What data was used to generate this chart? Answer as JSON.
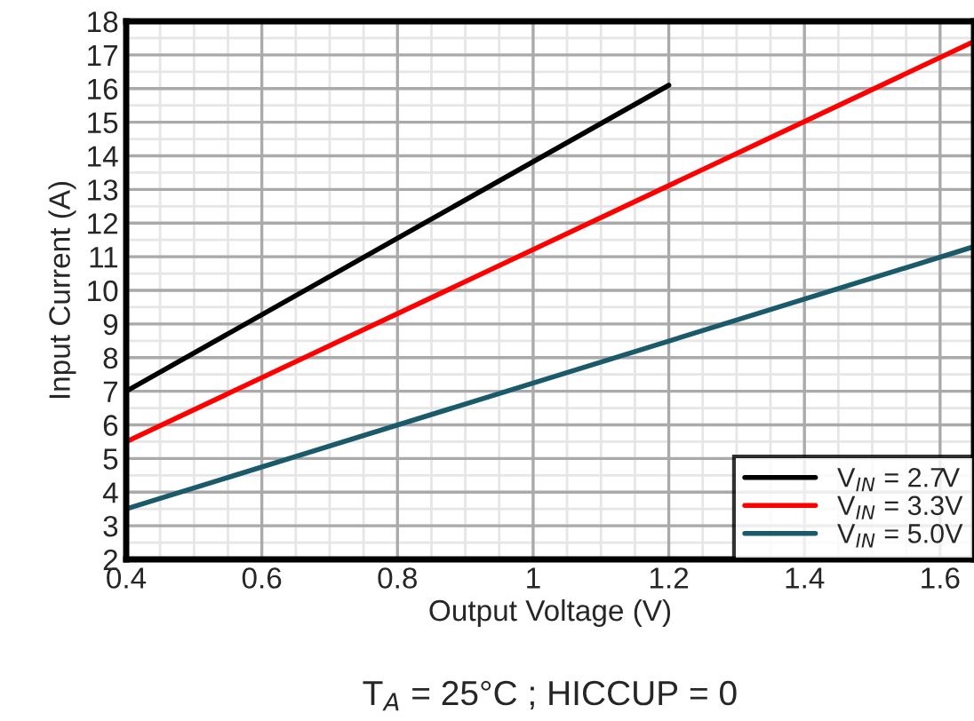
{
  "chart_data": {
    "type": "line",
    "xlabel": "Output Voltage (V)",
    "ylabel": "Input Current (A)",
    "xlim": [
      0.4,
      1.65
    ],
    "xticks": [
      {
        "value": 0.4,
        "label": "0.4"
      },
      {
        "value": 0.6,
        "label": "0.6"
      },
      {
        "value": 0.8,
        "label": "0.8"
      },
      1,
      {
        "value": 1.2,
        "label": "1.2"
      },
      {
        "value": 1.4,
        "label": "1.4"
      },
      {
        "value": 1.6,
        "label": "1.6"
      }
    ],
    "ylim": [
      2,
      18
    ],
    "yticks": [
      2,
      3,
      4,
      5,
      6,
      7,
      8,
      9,
      10,
      11,
      12,
      13,
      14,
      15,
      16,
      17,
      18
    ],
    "grid": true,
    "legend": "bottom right",
    "series": [
      {
        "name": "V$_{IN}$ = 2.7V",
        "color": "#000000",
        "x": [
          0.4,
          1.2
        ],
        "values": [
          7.0,
          16.1
        ]
      },
      {
        "name": "V$_{IN}$ = 3.3V",
        "color": "#ff0000",
        "x": [
          0.4,
          1.65
        ],
        "values": [
          5.5,
          17.4
        ]
      },
      {
        "name": "V$_{IN}$ = 5.0V",
        "color": "#1a5a6a",
        "x": [
          0.4,
          1.65
        ],
        "values": [
          3.5,
          11.3
        ]
      }
    ],
    "annotations": [
      "T$_{A}$ = 25°C ; HICCUP = 0"
    ]
  }
}
